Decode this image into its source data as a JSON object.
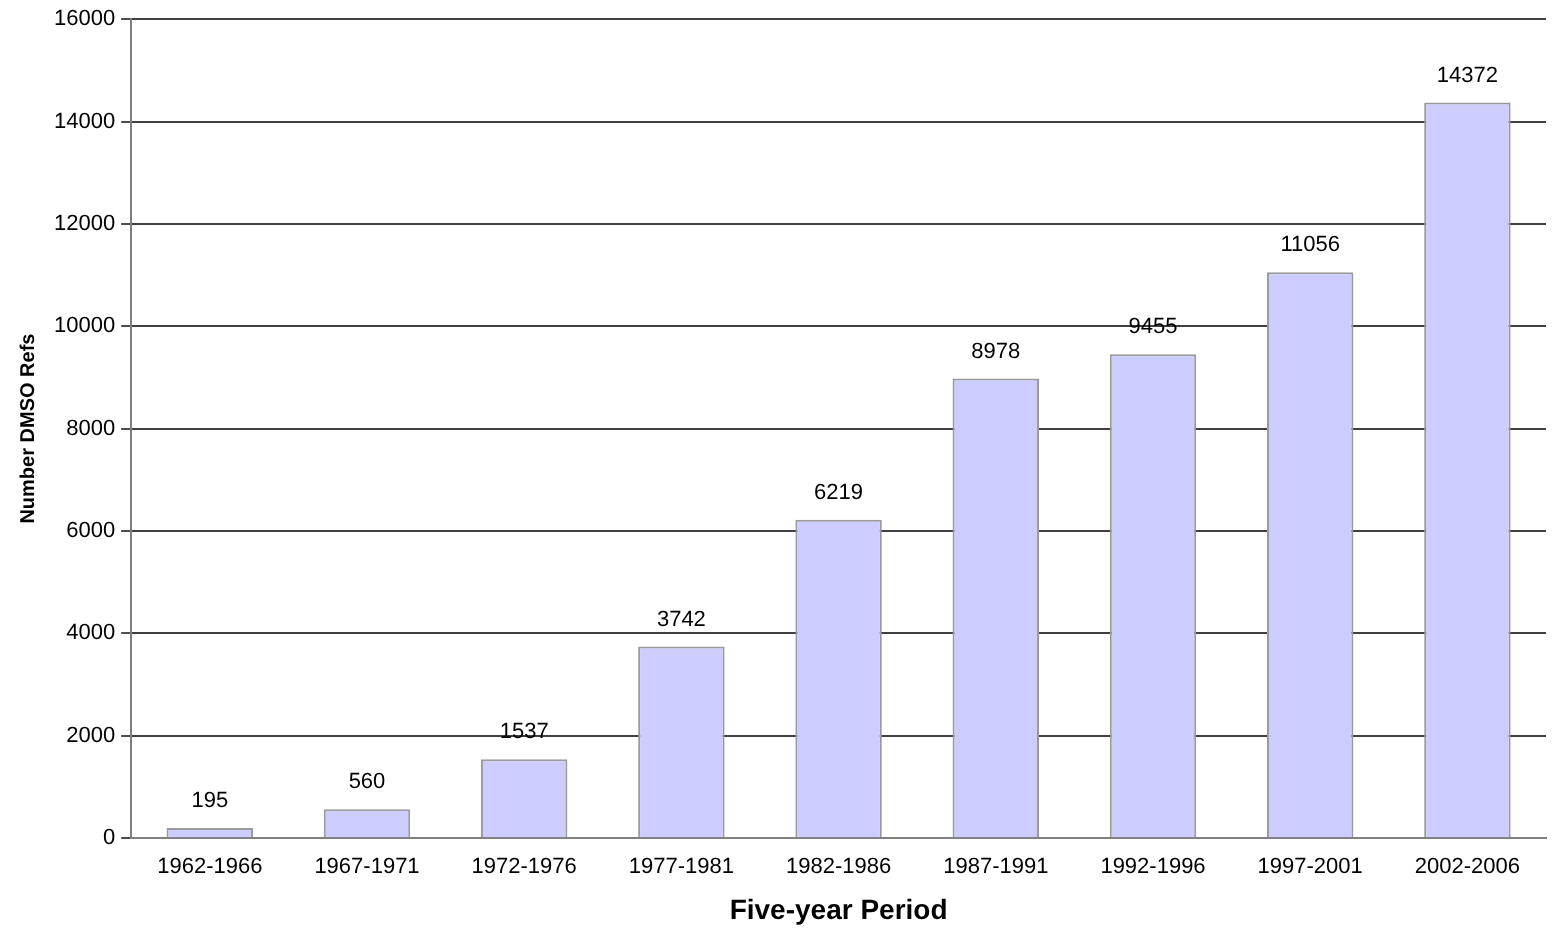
{
  "chart_data": {
    "type": "bar",
    "xlabel": "Five-year Period",
    "ylabel": "Number DMSO Refs",
    "categories": [
      "1962-1966",
      "1967-1971",
      "1972-1976",
      "1977-1981",
      "1982-1986",
      "1987-1991",
      "1992-1996",
      "1997-2001",
      "2002-2006"
    ],
    "values": [
      195,
      560,
      1537,
      3742,
      6219,
      8978,
      9455,
      11056,
      14372
    ],
    "color": "#ccccff",
    "ylim": [
      0,
      16000
    ],
    "yticks": [
      0,
      2000,
      4000,
      6000,
      8000,
      10000,
      12000,
      14000,
      16000
    ],
    "grid": "y",
    "data_labels": true,
    "legend": false
  }
}
